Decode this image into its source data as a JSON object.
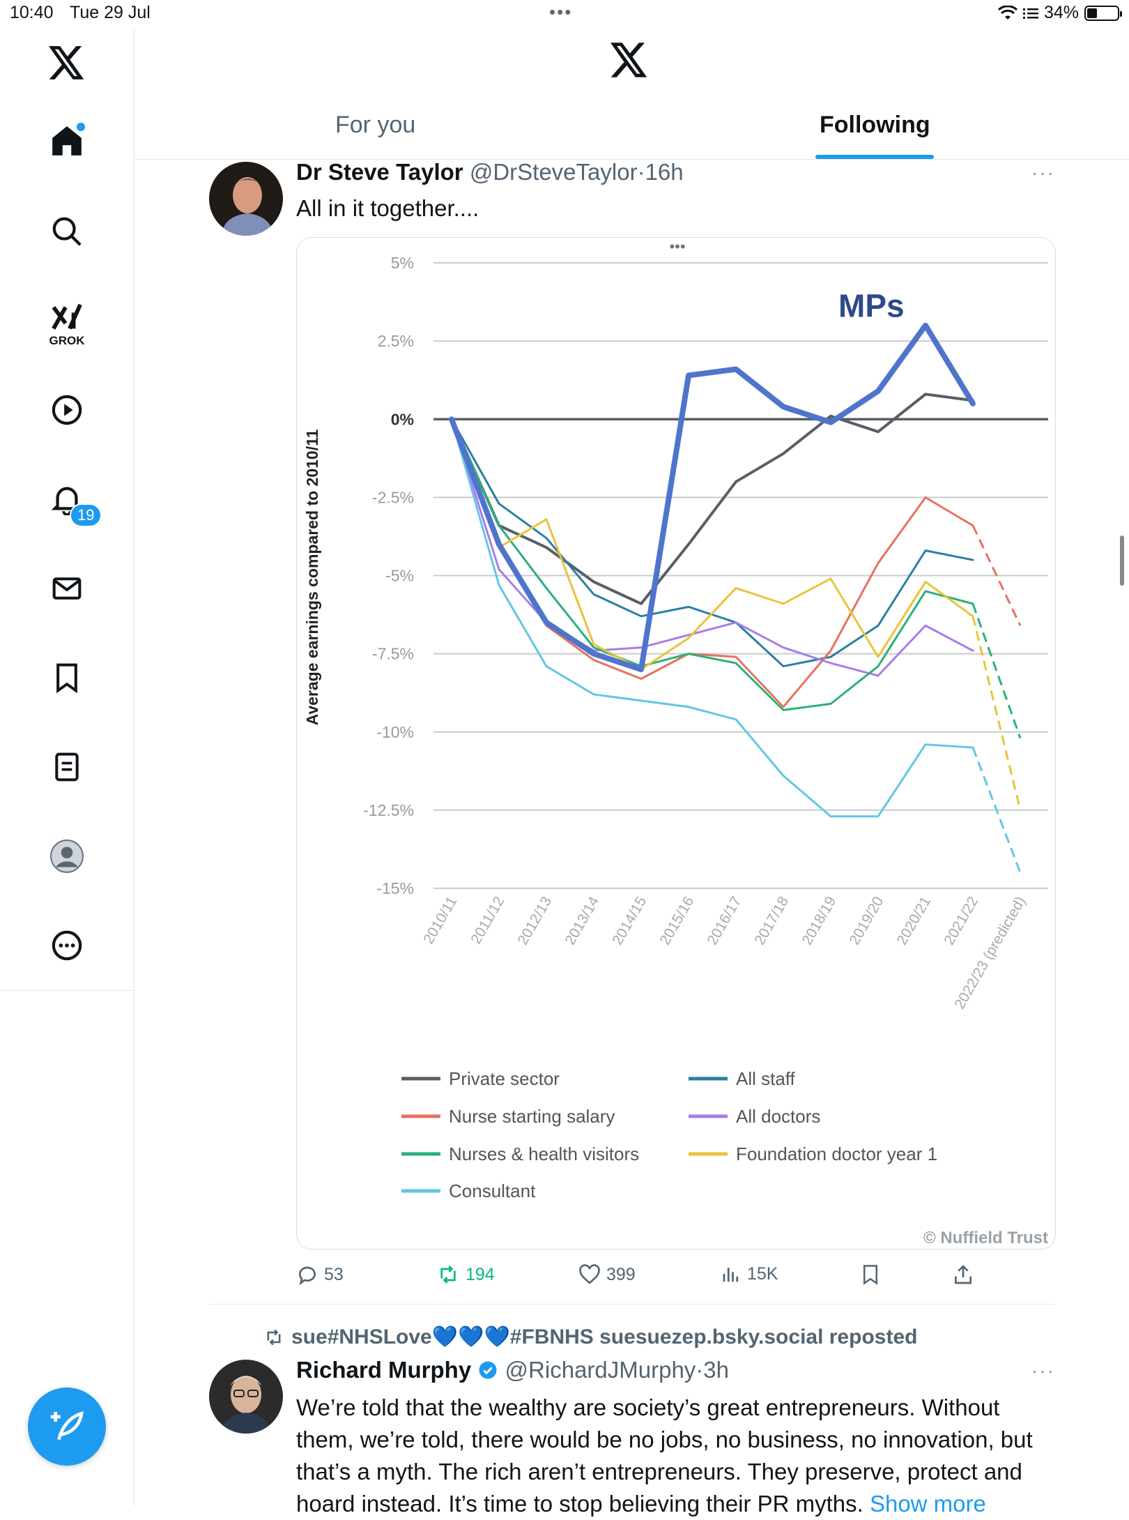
{
  "status_bar": {
    "time": "10:40",
    "date": "Tue 29 Jul",
    "battery_text": "34%",
    "battery_level": 0.34
  },
  "sidebar": {
    "items": [
      {
        "icon": "x-logo-icon"
      },
      {
        "icon": "home-icon",
        "has_dot": true
      },
      {
        "icon": "search-icon"
      },
      {
        "icon": "grok-icon",
        "label": "GROK"
      },
      {
        "icon": "play-icon"
      },
      {
        "icon": "bell-icon",
        "badge": "19"
      },
      {
        "icon": "mail-icon"
      },
      {
        "icon": "bookmark-icon"
      },
      {
        "icon": "lists-icon"
      },
      {
        "icon": "profile-icon"
      },
      {
        "icon": "more-icon"
      }
    ]
  },
  "header": {
    "tabs": [
      {
        "label": "For you"
      },
      {
        "label": "Following",
        "active": true
      }
    ]
  },
  "tweet1": {
    "name": "Dr Steve Taylor",
    "handle": "@DrSteveTaylor",
    "time": "16h",
    "text": "All in it together....",
    "actions": {
      "replies": "53",
      "reposts": "194",
      "likes": "399",
      "views": "15K"
    }
  },
  "chart_data": {
    "type": "line",
    "ylabel": "Average earnings compared to 2010/11",
    "ylim": [
      -15,
      5
    ],
    "yticks": [
      "5%",
      "2.5%",
      "0%",
      "-2.5%",
      "-5%",
      "-7.5%",
      "-10%",
      "-12.5%",
      "-15%"
    ],
    "ytick_values": [
      5,
      2.5,
      0,
      -2.5,
      -5,
      -7.5,
      -10,
      -12.5,
      -15
    ],
    "categories": [
      "2010/11",
      "2011/12",
      "2012/13",
      "2013/14",
      "2014/15",
      "2015/16",
      "2016/17",
      "2017/18",
      "2018/19",
      "2019/20",
      "2020/21",
      "2021/22",
      "2022/23 (predicted)"
    ],
    "annotation": "MPs",
    "credit": "© Nuffield Trust",
    "legend": [
      {
        "name": "Private sector",
        "color": "#595e66"
      },
      {
        "name": "All staff",
        "color": "#2a7fa3"
      },
      {
        "name": "Nurse starting salary",
        "color": "#e8715f"
      },
      {
        "name": "All doctors",
        "color": "#a77de8"
      },
      {
        "name": "Nurses & health visitors",
        "color": "#2bb07a"
      },
      {
        "name": "Foundation doctor year 1",
        "color": "#e8c43a"
      },
      {
        "name": "Consultant",
        "color": "#62c6e6"
      }
    ],
    "series": [
      {
        "key": "mps",
        "color": "#4f74cc",
        "width": 8,
        "values": [
          0,
          -4,
          -6.5,
          -7.5,
          -8,
          1.4,
          1.6,
          0.4,
          -0.1,
          0.9,
          3,
          0.5,
          null
        ]
      },
      {
        "key": "private",
        "color": "#595e66",
        "width": 4,
        "values": [
          0,
          -3.4,
          -4.1,
          -5.2,
          -5.9,
          -4,
          -2,
          -1.1,
          0.1,
          -0.4,
          0.8,
          0.6,
          null
        ]
      },
      {
        "key": "all_staff",
        "color": "#2a7fa3",
        "width": 3,
        "values": [
          0,
          -2.7,
          -3.8,
          -5.6,
          -6.3,
          -6,
          -6.5,
          -7.9,
          -7.6,
          -6.6,
          -4.2,
          -4.5,
          null
        ]
      },
      {
        "key": "nurse_start",
        "color": "#e8715f",
        "width": 3,
        "values": [
          0,
          -4.1,
          -6.6,
          -7.7,
          -8.3,
          -7.5,
          -7.6,
          -9.2,
          -7.4,
          -4.6,
          -2.5,
          -3.4,
          -6.6
        ]
      },
      {
        "key": "all_doctors",
        "color": "#a77de8",
        "width": 3,
        "values": [
          0,
          -4.8,
          -6.5,
          -7.4,
          -7.3,
          -6.9,
          -6.5,
          -7.3,
          -7.8,
          -8.2,
          -6.6,
          -7.4,
          null
        ]
      },
      {
        "key": "nurses_hv",
        "color": "#2bb07a",
        "width": 3,
        "values": [
          0,
          -3.4,
          -5.4,
          -7.3,
          -7.9,
          -7.5,
          -7.8,
          -9.3,
          -9.1,
          -7.9,
          -5.5,
          -5.9,
          -10.2
        ]
      },
      {
        "key": "fdy1",
        "color": "#e8c43a",
        "width": 3,
        "values": [
          0,
          -4.1,
          -3.2,
          -7.2,
          -8,
          -7,
          -5.4,
          -5.9,
          -5.1,
          -7.6,
          -5.2,
          -6.3,
          -12.5
        ]
      },
      {
        "key": "consultant",
        "color": "#62c6e6",
        "width": 3,
        "values": [
          0,
          -5.3,
          -7.9,
          -8.8,
          -9,
          -9.2,
          -9.6,
          -11.4,
          -12.7,
          -12.7,
          -10.4,
          -10.5,
          -14.5
        ]
      }
    ]
  },
  "repost": {
    "text": "sue#NHSLove💙💙💙#FBNHS suesuezep.bsky.social reposted"
  },
  "tweet2": {
    "name": "Richard Murphy",
    "handle": "@RichardJMurphy",
    "time": "3h",
    "text": "We’re told that the wealthy are society’s great entrepreneurs. Without them, we’re told, there would be no jobs, no business, no innovation, but that’s a myth. The rich aren’t entrepreneurs. They preserve, protect and hoard instead. It’s time to stop believing their PR myths.",
    "show_more": "Show more"
  }
}
